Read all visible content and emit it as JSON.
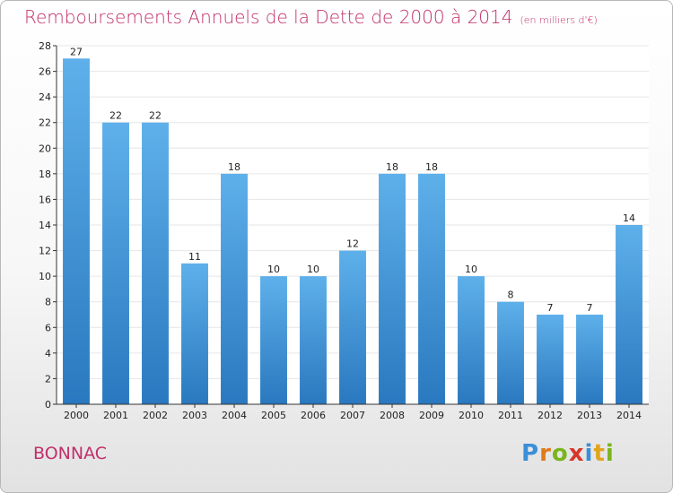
{
  "page": {
    "title": "Remboursements Annuels de la Dette de 2000 à 2014",
    "subtitle": "(en milliers d'€)",
    "commune": "BONNAC",
    "logo": {
      "letters": [
        "P",
        "r",
        "o",
        "x",
        "i",
        "t",
        "i"
      ],
      "colors": [
        "#3a8fd8",
        "#e07a1c",
        "#7ab51d",
        "#d8362b",
        "#3a8fd8",
        "#e0a51c",
        "#7ab51d"
      ]
    }
  },
  "chart_data": {
    "type": "bar",
    "title": "Remboursements Annuels de la Dette de 2000 à 2014",
    "subtitle": "(en milliers d'€)",
    "xlabel": "",
    "ylabel": "",
    "categories": [
      "2000",
      "2001",
      "2002",
      "2003",
      "2004",
      "2005",
      "2006",
      "2007",
      "2008",
      "2009",
      "2010",
      "2011",
      "2012",
      "2013",
      "2014"
    ],
    "values": [
      27,
      22,
      22,
      11,
      18,
      10,
      10,
      12,
      18,
      18,
      10,
      8,
      7,
      7,
      14
    ],
    "ylim": [
      0,
      28
    ],
    "yticks": [
      0,
      2,
      4,
      6,
      8,
      10,
      12,
      14,
      16,
      18,
      20,
      22,
      24,
      26,
      28
    ],
    "grid": true,
    "colors": {
      "bar_top": "#5eb0ea",
      "bar_bottom": "#2a78bf",
      "grid": "#e6e6e6",
      "axis": "#333333"
    }
  }
}
